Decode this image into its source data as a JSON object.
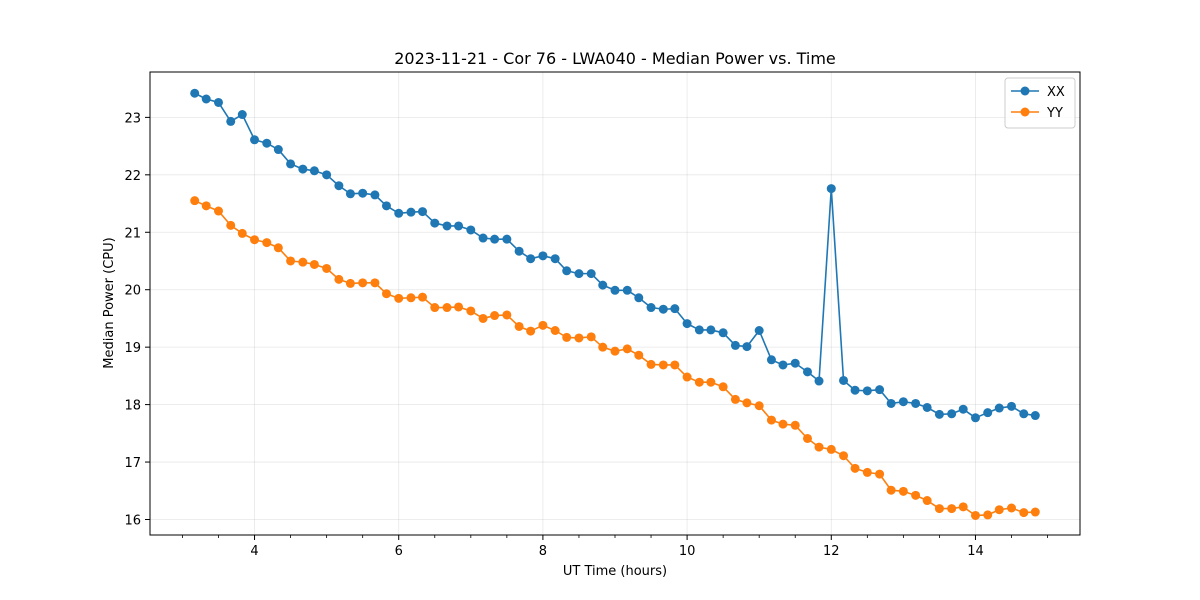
{
  "chart_data": {
    "type": "line",
    "title": "2023-11-21 - Cor 76 - LWA040 - Median Power vs. Time",
    "xlabel": "UT Time (hours)",
    "ylabel": "Median Power (CPU)",
    "xlim": [
      2.55,
      15.45
    ],
    "ylim": [
      15.73,
      23.79
    ],
    "x_ticks": [
      4,
      6,
      8,
      10,
      12,
      14
    ],
    "x_tick_labels": [
      "4",
      "6",
      "8",
      "10",
      "12",
      "14"
    ],
    "x_minor_step": 0.5,
    "y_ticks": [
      16,
      17,
      18,
      19,
      20,
      21,
      22,
      23
    ],
    "y_tick_labels": [
      "16",
      "17",
      "18",
      "19",
      "20",
      "21",
      "22",
      "23"
    ],
    "grid": true,
    "legend_position": "top-right",
    "x": [
      3.17,
      3.33,
      3.5,
      3.67,
      3.83,
      4.0,
      4.17,
      4.33,
      4.5,
      4.67,
      4.83,
      5.0,
      5.17,
      5.33,
      5.5,
      5.67,
      5.83,
      6.0,
      6.17,
      6.33,
      6.5,
      6.67,
      6.83,
      7.0,
      7.17,
      7.33,
      7.5,
      7.67,
      7.83,
      8.0,
      8.17,
      8.33,
      8.5,
      8.67,
      8.83,
      9.0,
      9.17,
      9.33,
      9.5,
      9.67,
      9.83,
      10.0,
      10.17,
      10.33,
      10.5,
      10.67,
      10.83,
      11.0,
      11.17,
      11.33,
      11.5,
      11.67,
      11.83,
      12.0,
      12.17,
      12.33,
      12.5,
      12.67,
      12.83,
      13.0,
      13.17,
      13.33,
      13.5,
      13.67,
      13.83,
      14.0,
      14.17,
      14.33,
      14.5,
      14.67,
      14.83
    ],
    "series": [
      {
        "name": "XX",
        "color": "#1f77b4",
        "values": [
          23.42,
          23.32,
          23.26,
          22.93,
          23.05,
          22.61,
          22.55,
          22.44,
          22.19,
          22.1,
          22.07,
          22.0,
          21.81,
          21.67,
          21.68,
          21.65,
          21.46,
          21.33,
          21.35,
          21.36,
          21.16,
          21.11,
          21.11,
          21.04,
          20.9,
          20.88,
          20.88,
          20.67,
          20.54,
          20.59,
          20.54,
          20.33,
          20.28,
          20.28,
          20.08,
          19.99,
          19.99,
          19.86,
          19.69,
          19.66,
          19.67,
          19.41,
          19.3,
          19.3,
          19.25,
          19.03,
          19.01,
          19.29,
          18.78,
          18.69,
          18.72,
          18.57,
          18.41,
          21.76,
          18.42,
          18.25,
          18.24,
          18.26,
          18.02,
          18.05,
          18.02,
          17.95,
          17.83,
          17.84,
          17.92,
          17.77,
          17.86,
          17.94,
          17.97,
          17.84,
          17.81
        ]
      },
      {
        "name": "YY",
        "color": "#ff7f0e",
        "values": [
          21.55,
          21.46,
          21.37,
          21.12,
          20.98,
          20.87,
          20.82,
          20.73,
          20.5,
          20.48,
          20.44,
          20.37,
          20.18,
          20.11,
          20.12,
          20.12,
          19.93,
          19.85,
          19.86,
          19.87,
          19.69,
          19.69,
          19.7,
          19.63,
          19.5,
          19.55,
          19.56,
          19.36,
          19.28,
          19.38,
          19.29,
          19.17,
          19.16,
          19.18,
          19.0,
          18.93,
          18.97,
          18.86,
          18.7,
          18.69,
          18.69,
          18.48,
          18.39,
          18.39,
          18.31,
          18.09,
          18.03,
          17.98,
          17.73,
          17.66,
          17.64,
          17.41,
          17.26,
          17.22,
          17.11,
          16.89,
          16.82,
          16.79,
          16.51,
          16.49,
          16.42,
          16.33,
          16.19,
          16.19,
          16.22,
          16.07,
          16.08,
          16.17,
          16.2,
          16.12,
          16.13
        ]
      }
    ]
  }
}
